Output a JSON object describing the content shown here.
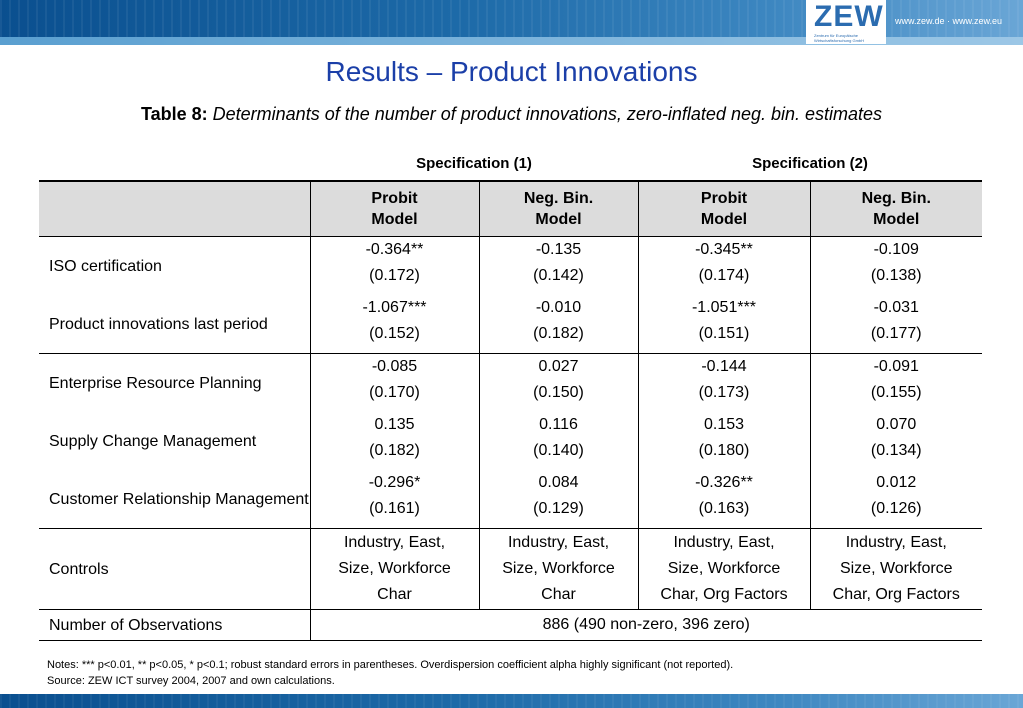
{
  "header": {
    "logo": "ZEW",
    "logo_sub": "Zentrum für Europäische Wirtschaftsforschung GmbH",
    "url": "www.zew.de · www.zew.eu"
  },
  "title": "Results – Product Innovations",
  "subtitle": {
    "label": "Table 8:",
    "text": "Determinants of the number of product innovations, zero-inflated neg. bin. estimates"
  },
  "spec_headers": [
    "Specification (1)",
    "Specification (2)"
  ],
  "columns": [
    {
      "l1": "Probit",
      "l2": "Model"
    },
    {
      "l1": "Neg. Bin.",
      "l2": "Model"
    },
    {
      "l1": "Probit",
      "l2": "Model"
    },
    {
      "l1": "Neg. Bin.",
      "l2": "Model"
    }
  ],
  "rows": [
    {
      "label": "ISO certification",
      "coef": [
        "-0.364**",
        "-0.135",
        "-0.345**",
        "-0.109"
      ],
      "se": [
        "(0.172)",
        "(0.142)",
        "(0.174)",
        "(0.138)"
      ]
    },
    {
      "label": "Product innovations last period",
      "coef": [
        "-1.067***",
        "-0.010",
        "-1.051***",
        "-0.031"
      ],
      "se": [
        "(0.152)",
        "(0.182)",
        "(0.151)",
        "(0.177)"
      ]
    },
    {
      "label": "Enterprise Resource Planning",
      "coef": [
        "-0.085",
        "0.027",
        "-0.144",
        "-0.091"
      ],
      "se": [
        "(0.170)",
        "(0.150)",
        "(0.173)",
        "(0.155)"
      ]
    },
    {
      "label": "Supply Change Management",
      "coef": [
        "0.135",
        "0.116",
        "0.153",
        "0.070"
      ],
      "se": [
        "(0.182)",
        "(0.140)",
        "(0.180)",
        "(0.134)"
      ]
    },
    {
      "label": "Customer Relationship Management",
      "coef": [
        "-0.296*",
        "0.084",
        "-0.326**",
        "0.012"
      ],
      "se": [
        "(0.161)",
        "(0.129)",
        "(0.163)",
        "(0.126)"
      ]
    }
  ],
  "controls": {
    "label": "Controls",
    "values": [
      [
        "Industry, East,",
        "Size, Workforce",
        "Char"
      ],
      [
        "Industry, East,",
        "Size, Workforce",
        "Char"
      ],
      [
        "Industry, East,",
        "Size, Workforce",
        "Char, Org Factors"
      ],
      [
        "Industry, East,",
        "Size, Workforce",
        "Char, Org Factors"
      ]
    ]
  },
  "observations": {
    "label": "Number of Observations",
    "value": "886 (490 non-zero, 396 zero)"
  },
  "notes": [
    "Notes: *** p<0.01,  ** p<0.05,  * p<0.1; robust standard errors in parentheses.  Overdispersion coefficient alpha highly significant (not reported).",
    "Source: ZEW ICT survey 2004, 2007 and own calculations."
  ]
}
